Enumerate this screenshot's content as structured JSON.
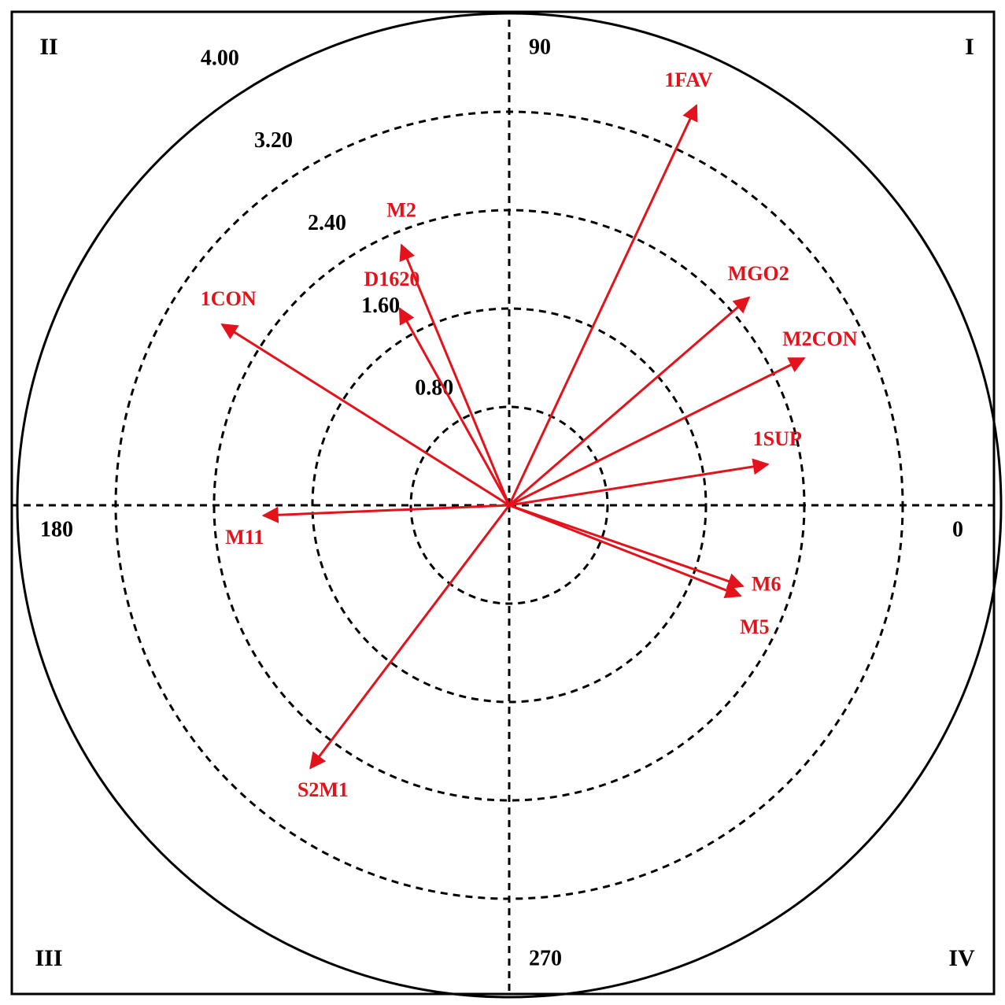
{
  "chart_data": {
    "type": "polar-vector",
    "color": "#e3121b",
    "rlim": [
      0,
      4
    ],
    "rticks": [
      {
        "value": 0.8,
        "label": "0.80"
      },
      {
        "value": 1.6,
        "label": "1.60"
      },
      {
        "value": 2.4,
        "label": "2.40"
      },
      {
        "value": 3.2,
        "label": "3.20"
      },
      {
        "value": 4,
        "label": "4.00"
      }
    ],
    "angle_ticks": [
      0,
      90,
      180,
      270
    ],
    "quadrants": [
      "I",
      "II",
      "III",
      "IV"
    ],
    "vectors": [
      {
        "name": "1FAV",
        "angle": 64.9,
        "r": 3.59
      },
      {
        "name": "M2",
        "angle": 112.5,
        "r": 2.29
      },
      {
        "name": "D1620",
        "angle": 119.1,
        "r": 1.83
      },
      {
        "name": "1CON",
        "angle": 147.8,
        "r": 2.76
      },
      {
        "name": "MGO2",
        "angle": 40.9,
        "r": 2.58
      },
      {
        "name": "M2CON",
        "angle": 26.5,
        "r": 2.68
      },
      {
        "name": "1SUP",
        "angle": 9.0,
        "r": 2.13
      },
      {
        "name": "M11",
        "angle": 182.4,
        "r": 2.0
      },
      {
        "name": "M6",
        "angle": 340.9,
        "r": 2.01
      },
      {
        "name": "M5",
        "angle": 338.6,
        "r": 2.02
      },
      {
        "name": "S2M1",
        "angle": 232.9,
        "r": 2.68
      }
    ]
  }
}
